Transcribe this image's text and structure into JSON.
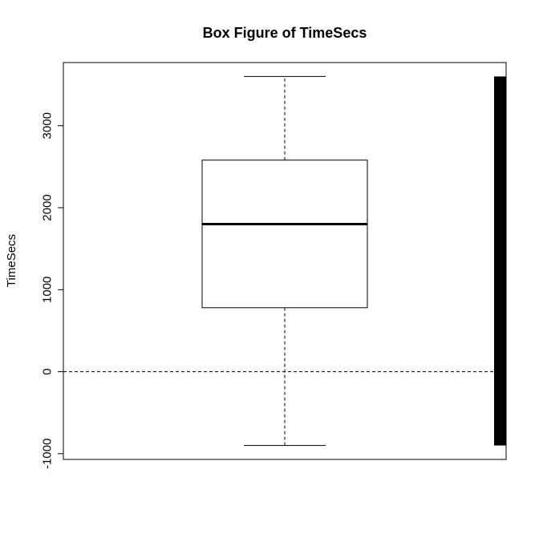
{
  "chart_data": {
    "type": "boxplot",
    "title": "Box Figure of TimeSecs",
    "xlabel": "",
    "ylabel": "TimeSecs",
    "ylim": [
      -1070,
      3770
    ],
    "yticks": [
      -1000,
      0,
      1000,
      2000,
      3000
    ],
    "ytick_labels": [
      "-1000",
      "0",
      "1000",
      "2000",
      "3000"
    ],
    "box": {
      "whisker_low": -900,
      "q1": 780,
      "median": 1800,
      "q3": 2580,
      "whisker_high": 3600
    },
    "reference_line": {
      "y": 0,
      "style": "dashed"
    },
    "side_bar": {
      "y_from": -900,
      "y_to": 3600,
      "color": "#000000"
    },
    "grid": false,
    "colors": {
      "box_fill": "#ffffff",
      "stroke": "#000000"
    }
  }
}
